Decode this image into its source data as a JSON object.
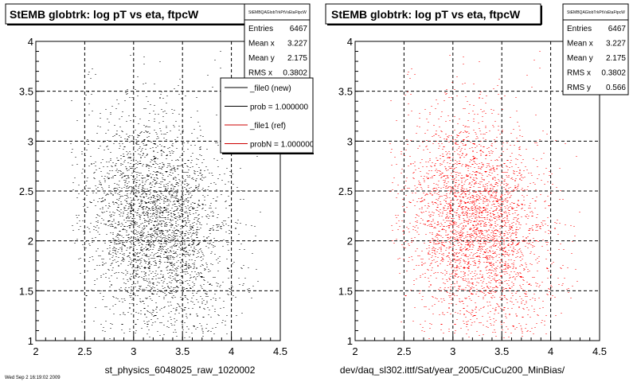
{
  "chart_data": [
    {
      "type": "scatter",
      "title": "StEMB globtrk: log pT vs eta, ftpcW",
      "xlabel": "st_physics_6048025_raw_1020002",
      "ylabel": "",
      "xlim": [
        2,
        4.5
      ],
      "ylim": [
        1,
        4
      ],
      "xticks": [
        "2",
        "2.5",
        "3",
        "3.5",
        "4",
        "4.5"
      ],
      "yticks": [
        "1",
        "1.5",
        "2",
        "2.5",
        "3",
        "3.5",
        "4"
      ],
      "grid": true,
      "color": "#000000",
      "density": {
        "entries": 6467,
        "mean_x": 3.227,
        "mean_y": 2.175,
        "rms_x": 0.3802,
        "rms_y": 0.566
      },
      "stats": {
        "header": "StEMBQAGlobTrkPtVsEtaFtpcW",
        "rows": [
          {
            "label": "Entries",
            "value": "6467"
          },
          {
            "label": "Mean x",
            "value": "3.227"
          },
          {
            "label": "Mean y",
            "value": "2.175"
          },
          {
            "label": "RMS x",
            "value": "0.3802"
          }
        ]
      },
      "legend": {
        "placement": "top-right",
        "entries": [
          {
            "label": "_file0 (new)",
            "color": "#000000"
          },
          {
            "label": "prob = 1.000000",
            "color": "#000000"
          },
          {
            "label": "_file1 (ref)",
            "color": "#cc0000"
          },
          {
            "label": "probN = 1.000000",
            "color": "#cc0000"
          }
        ]
      }
    },
    {
      "type": "scatter",
      "title": "StEMB globtrk: log pT vs eta, ftpcW",
      "xlabel": "dev/daq_sl302.ittf/Sat/year_2005/CuCu200_MinBias/",
      "ylabel": "",
      "xlim": [
        2,
        4.5
      ],
      "ylim": [
        1,
        4
      ],
      "xticks": [
        "2",
        "2.5",
        "3",
        "3.5",
        "4",
        "4.5"
      ],
      "yticks": [
        "1",
        "1.5",
        "2",
        "2.5",
        "3",
        "3.5",
        "4"
      ],
      "grid": true,
      "color": "#ff0000",
      "density": {
        "entries": 6467,
        "mean_x": 3.227,
        "mean_y": 2.175,
        "rms_x": 0.3802,
        "rms_y": 0.566
      },
      "stats": {
        "header": "StEMBQAGlobTrkPtVsEtaFtpcW",
        "rows": [
          {
            "label": "Entries",
            "value": "6467"
          },
          {
            "label": "Mean x",
            "value": "3.227"
          },
          {
            "label": "Mean y",
            "value": "2.175"
          },
          {
            "label": "RMS x",
            "value": "0.3802"
          },
          {
            "label": "RMS y",
            "value": "0.566"
          }
        ]
      }
    }
  ],
  "footer": {
    "timestamp": "Wed Sep 2 16:19:02 2009"
  }
}
